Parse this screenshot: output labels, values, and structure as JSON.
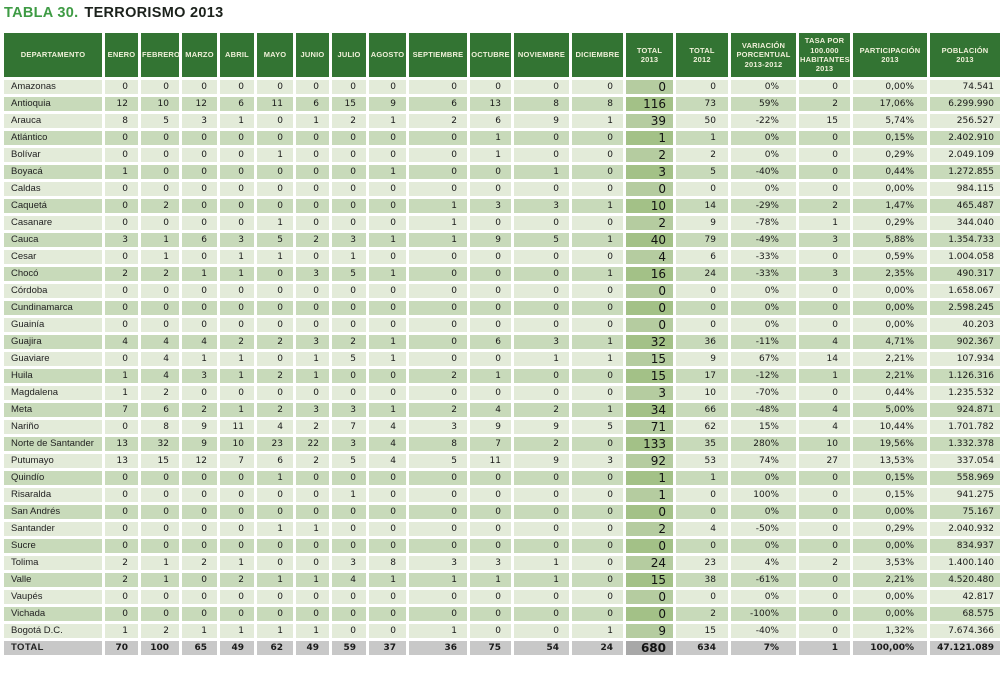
{
  "title": {
    "prefix": "TABLA 30.",
    "text": "TERRORISMO 2013"
  },
  "colors": {
    "title_green": "#3E9B44",
    "header_bg": "#337433",
    "header_text": "#EFF0D8",
    "row_light": "#E3EBD9",
    "row_dark": "#C8DABA",
    "total_col_light": "#B5CCA0",
    "total_col_dark": "#A3C187",
    "footer_bg": "#C8C8C8",
    "footer_total_col": "#A8A8A8"
  },
  "table": {
    "headers": [
      "DEPARTAMENTO",
      "ENERO",
      "FEBRERO",
      "MARZO",
      "ABRIL",
      "MAYO",
      "JUNIO",
      "JULIO",
      "AGOSTO",
      "SEPTIEMBRE",
      "OCTUBRE",
      "NOVIEMBRE",
      "DICIEMBRE",
      "TOTAL\n2013",
      "TOTAL\n2012",
      "VARIACIÓN\nPORCENTUAL\n2013-2012",
      "TASA POR\n100.000\nHABITANTES\n2013",
      "PARTICIPACIÓN\n2013",
      "POBLACIÓN\n2013"
    ],
    "rows": [
      {
        "departamento": "Amazonas",
        "values": [
          0,
          0,
          0,
          0,
          0,
          0,
          0,
          0,
          0,
          0,
          0,
          0,
          "0",
          "0",
          "0%",
          "0",
          "0,00%",
          "74.541"
        ]
      },
      {
        "departamento": "Antioquia",
        "values": [
          12,
          10,
          12,
          6,
          11,
          6,
          15,
          9,
          6,
          13,
          8,
          8,
          "116",
          "73",
          "59%",
          "2",
          "17,06%",
          "6.299.990"
        ]
      },
      {
        "departamento": "Arauca",
        "values": [
          8,
          5,
          3,
          1,
          0,
          1,
          2,
          1,
          2,
          6,
          9,
          1,
          "39",
          "50",
          "-22%",
          "15",
          "5,74%",
          "256.527"
        ]
      },
      {
        "departamento": "Atlántico",
        "values": [
          0,
          0,
          0,
          0,
          0,
          0,
          0,
          0,
          0,
          1,
          0,
          0,
          "1",
          "1",
          "0%",
          "0",
          "0,15%",
          "2.402.910"
        ]
      },
      {
        "departamento": "Bolívar",
        "values": [
          0,
          0,
          0,
          0,
          1,
          0,
          0,
          0,
          0,
          1,
          0,
          0,
          "2",
          "2",
          "0%",
          "0",
          "0,29%",
          "2.049.109"
        ]
      },
      {
        "departamento": "Boyacá",
        "values": [
          1,
          0,
          0,
          0,
          0,
          0,
          0,
          1,
          0,
          0,
          1,
          0,
          "3",
          "5",
          "-40%",
          "0",
          "0,44%",
          "1.272.855"
        ]
      },
      {
        "departamento": "Caldas",
        "values": [
          0,
          0,
          0,
          0,
          0,
          0,
          0,
          0,
          0,
          0,
          0,
          0,
          "0",
          "0",
          "0%",
          "0",
          "0,00%",
          "984.115"
        ]
      },
      {
        "departamento": "Caquetá",
        "values": [
          0,
          2,
          0,
          0,
          0,
          0,
          0,
          0,
          1,
          3,
          3,
          1,
          "10",
          "14",
          "-29%",
          "2",
          "1,47%",
          "465.487"
        ]
      },
      {
        "departamento": "Casanare",
        "values": [
          0,
          0,
          0,
          0,
          1,
          0,
          0,
          0,
          1,
          0,
          0,
          0,
          "2",
          "9",
          "-78%",
          "1",
          "0,29%",
          "344.040"
        ]
      },
      {
        "departamento": "Cauca",
        "values": [
          3,
          1,
          6,
          3,
          5,
          2,
          3,
          1,
          1,
          9,
          5,
          1,
          "40",
          "79",
          "-49%",
          "3",
          "5,88%",
          "1.354.733"
        ]
      },
      {
        "departamento": "Cesar",
        "values": [
          0,
          1,
          0,
          1,
          1,
          0,
          1,
          0,
          0,
          0,
          0,
          0,
          "4",
          "6",
          "-33%",
          "0",
          "0,59%",
          "1.004.058"
        ]
      },
      {
        "departamento": "Chocó",
        "values": [
          2,
          2,
          1,
          1,
          0,
          3,
          5,
          1,
          0,
          0,
          0,
          1,
          "16",
          "24",
          "-33%",
          "3",
          "2,35%",
          "490.317"
        ]
      },
      {
        "departamento": "Córdoba",
        "values": [
          0,
          0,
          0,
          0,
          0,
          0,
          0,
          0,
          0,
          0,
          0,
          0,
          "0",
          "0",
          "0%",
          "0",
          "0,00%",
          "1.658.067"
        ]
      },
      {
        "departamento": "Cundinamarca",
        "values": [
          0,
          0,
          0,
          0,
          0,
          0,
          0,
          0,
          0,
          0,
          0,
          0,
          "0",
          "0",
          "0%",
          "0",
          "0,00%",
          "2.598.245"
        ]
      },
      {
        "departamento": "Guainía",
        "values": [
          0,
          0,
          0,
          0,
          0,
          0,
          0,
          0,
          0,
          0,
          0,
          0,
          "0",
          "0",
          "0%",
          "0",
          "0,00%",
          "40.203"
        ]
      },
      {
        "departamento": "Guajira",
        "values": [
          4,
          4,
          4,
          2,
          2,
          3,
          2,
          1,
          0,
          6,
          3,
          1,
          "32",
          "36",
          "-11%",
          "4",
          "4,71%",
          "902.367"
        ]
      },
      {
        "departamento": "Guaviare",
        "values": [
          0,
          4,
          1,
          1,
          0,
          1,
          5,
          1,
          0,
          0,
          1,
          1,
          "15",
          "9",
          "67%",
          "14",
          "2,21%",
          "107.934"
        ]
      },
      {
        "departamento": "Huila",
        "values": [
          1,
          4,
          3,
          1,
          2,
          1,
          0,
          0,
          2,
          1,
          0,
          0,
          "15",
          "17",
          "-12%",
          "1",
          "2,21%",
          "1.126.316"
        ]
      },
      {
        "departamento": "Magdalena",
        "values": [
          1,
          2,
          0,
          0,
          0,
          0,
          0,
          0,
          0,
          0,
          0,
          0,
          "3",
          "10",
          "-70%",
          "0",
          "0,44%",
          "1.235.532"
        ]
      },
      {
        "departamento": "Meta",
        "values": [
          7,
          6,
          2,
          1,
          2,
          3,
          3,
          1,
          2,
          4,
          2,
          1,
          "34",
          "66",
          "-48%",
          "4",
          "5,00%",
          "924.871"
        ]
      },
      {
        "departamento": "Nariño",
        "values": [
          0,
          8,
          9,
          11,
          4,
          2,
          7,
          4,
          3,
          9,
          9,
          5,
          "71",
          "62",
          "15%",
          "4",
          "10,44%",
          "1.701.782"
        ]
      },
      {
        "departamento": "Norte de Santander",
        "values": [
          13,
          32,
          9,
          10,
          23,
          22,
          3,
          4,
          8,
          7,
          2,
          0,
          "133",
          "35",
          "280%",
          "10",
          "19,56%",
          "1.332.378"
        ]
      },
      {
        "departamento": "Putumayo",
        "values": [
          13,
          15,
          12,
          7,
          6,
          2,
          5,
          4,
          5,
          11,
          9,
          3,
          "92",
          "53",
          "74%",
          "27",
          "13,53%",
          "337.054"
        ]
      },
      {
        "departamento": "Quindío",
        "values": [
          0,
          0,
          0,
          0,
          1,
          0,
          0,
          0,
          0,
          0,
          0,
          0,
          "1",
          "1",
          "0%",
          "0",
          "0,15%",
          "558.969"
        ]
      },
      {
        "departamento": "Risaralda",
        "values": [
          0,
          0,
          0,
          0,
          0,
          0,
          1,
          0,
          0,
          0,
          0,
          0,
          "1",
          "0",
          "100%",
          "0",
          "0,15%",
          "941.275"
        ]
      },
      {
        "departamento": "San Andrés",
        "values": [
          0,
          0,
          0,
          0,
          0,
          0,
          0,
          0,
          0,
          0,
          0,
          0,
          "0",
          "0",
          "0%",
          "0",
          "0,00%",
          "75.167"
        ]
      },
      {
        "departamento": "Santander",
        "values": [
          0,
          0,
          0,
          0,
          1,
          1,
          0,
          0,
          0,
          0,
          0,
          0,
          "2",
          "4",
          "-50%",
          "0",
          "0,29%",
          "2.040.932"
        ]
      },
      {
        "departamento": "Sucre",
        "values": [
          0,
          0,
          0,
          0,
          0,
          0,
          0,
          0,
          0,
          0,
          0,
          0,
          "0",
          "0",
          "0%",
          "0",
          "0,00%",
          "834.937"
        ]
      },
      {
        "departamento": "Tolima",
        "values": [
          2,
          1,
          2,
          1,
          0,
          0,
          3,
          8,
          3,
          3,
          1,
          0,
          "24",
          "23",
          "4%",
          "2",
          "3,53%",
          "1.400.140"
        ]
      },
      {
        "departamento": "Valle",
        "values": [
          2,
          1,
          0,
          2,
          1,
          1,
          4,
          1,
          1,
          1,
          1,
          0,
          "15",
          "38",
          "-61%",
          "0",
          "2,21%",
          "4.520.480"
        ]
      },
      {
        "departamento": "Vaupés",
        "values": [
          0,
          0,
          0,
          0,
          0,
          0,
          0,
          0,
          0,
          0,
          0,
          0,
          "0",
          "0",
          "0%",
          "0",
          "0,00%",
          "42.817"
        ]
      },
      {
        "departamento": "Vichada",
        "values": [
          0,
          0,
          0,
          0,
          0,
          0,
          0,
          0,
          0,
          0,
          0,
          0,
          "0",
          "2",
          "-100%",
          "0",
          "0,00%",
          "68.575"
        ]
      },
      {
        "departamento": "Bogotá D.C.",
        "values": [
          1,
          2,
          1,
          1,
          1,
          1,
          0,
          0,
          1,
          0,
          0,
          1,
          "9",
          "15",
          "-40%",
          "0",
          "1,32%",
          "7.674.366"
        ]
      }
    ],
    "total_row": {
      "departamento": "TOTAL",
      "values": [
        70,
        100,
        65,
        49,
        62,
        49,
        59,
        37,
        36,
        75,
        54,
        24,
        "680",
        "634",
        "7%",
        "1",
        "100,00%",
        "47.121.089"
      ]
    }
  }
}
